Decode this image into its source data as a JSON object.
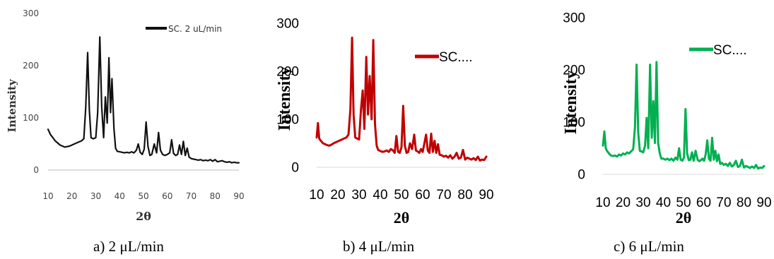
{
  "chart_data": [
    {
      "type": "line",
      "panel_label": "a)",
      "caption": "a) 2 μL/min",
      "xlabel": "2θ",
      "ylabel": "Intensity",
      "xlim": [
        10,
        90
      ],
      "ylim": [
        0,
        300
      ],
      "x_ticks": [
        10,
        20,
        30,
        40,
        50,
        60,
        70,
        80,
        90
      ],
      "x_tick_labels": [
        "10",
        "20",
        "30",
        "40",
        "50",
        "60",
        "70",
        "80",
        "90"
      ],
      "y_ticks": [
        0,
        100,
        200,
        300
      ],
      "y_tick_labels": [
        "0",
        "100",
        "200",
        "300"
      ],
      "legend": "top-right",
      "grid": false,
      "series": [
        {
          "name": "SC. 2 uL/min",
          "color": "#111111",
          "x": [
            10,
            11,
            12,
            13,
            14,
            15,
            16,
            17,
            18,
            19,
            20,
            21,
            22,
            23,
            24,
            25,
            25.8,
            26.6,
            27.3,
            28,
            29,
            30,
            30.8,
            31.7,
            32.5,
            33.3,
            34,
            34.8,
            35.5,
            36.2,
            36.8,
            37.6,
            38.3,
            39,
            40,
            41,
            42,
            43,
            44,
            45,
            46,
            47,
            47.8,
            48.6,
            49.5,
            50.3,
            51.1,
            51.9,
            52.7,
            53.5,
            54.5,
            55.5,
            56.3,
            57.1,
            58,
            59,
            60,
            61,
            61.8,
            62.6,
            63.5,
            64.3,
            65.1,
            65.9,
            66.7,
            67.5,
            68.3,
            69.1,
            70,
            71,
            72,
            73,
            74,
            75,
            76,
            77,
            78,
            79,
            80,
            81,
            82,
            83,
            84,
            85,
            86,
            87,
            88,
            89,
            90
          ],
          "y": [
            78,
            68,
            62,
            56,
            52,
            48,
            46,
            44,
            45,
            46,
            48,
            50,
            52,
            54,
            56,
            60,
            120,
            225,
            115,
            62,
            60,
            62,
            110,
            255,
            120,
            62,
            140,
            90,
            215,
            110,
            175,
            80,
            42,
            36,
            35,
            34,
            33,
            34,
            33,
            35,
            33,
            38,
            50,
            34,
            30,
            40,
            92,
            45,
            28,
            30,
            50,
            33,
            72,
            38,
            30,
            28,
            30,
            33,
            58,
            32,
            28,
            30,
            48,
            30,
            55,
            28,
            42,
            25,
            22,
            21,
            20,
            19,
            20,
            18,
            19,
            18,
            20,
            17,
            20,
            16,
            17,
            18,
            16,
            15,
            16,
            14,
            15,
            14,
            14
          ]
        }
      ]
    },
    {
      "type": "line",
      "panel_label": "b)",
      "caption": "b) 4 μL/min",
      "xlabel": "2θ",
      "ylabel": "Intensity",
      "xlim": [
        10,
        90
      ],
      "ylim": [
        0,
        300
      ],
      "x_ticks": [
        10,
        20,
        30,
        40,
        50,
        60,
        70,
        80,
        90
      ],
      "x_tick_labels": [
        "10",
        "20",
        "30",
        "40",
        "50",
        "60",
        "70",
        "80",
        "90"
      ],
      "y_ticks": [
        0,
        100,
        200,
        300
      ],
      "y_tick_labels": [
        "0",
        "100",
        "200",
        "300"
      ],
      "legend": "top-right",
      "grid": false,
      "series": [
        {
          "name": "SC....",
          "color": "#c00000",
          "x": [
            10,
            10.6,
            11.2,
            12,
            13,
            14,
            15,
            16,
            17,
            18,
            19,
            20,
            21,
            22,
            23,
            24,
            25,
            25.9,
            26.7,
            27.4,
            28.2,
            29,
            30,
            30.9,
            31.7,
            32.5,
            33.4,
            34.2,
            35,
            35.9,
            36.7,
            37.5,
            38.3,
            39,
            40,
            41,
            42,
            43,
            44,
            45,
            46,
            46.8,
            47.6,
            48.4,
            49.2,
            50,
            50.8,
            51.6,
            52.4,
            53.2,
            54,
            55,
            56,
            56.8,
            57.6,
            58.4,
            59.2,
            60,
            60.8,
            61.6,
            62.4,
            63.2,
            64,
            64.8,
            65.6,
            66.4,
            67.2,
            68,
            69,
            70,
            71,
            72,
            73,
            74,
            75,
            76,
            77,
            78,
            79,
            80,
            81,
            82,
            83,
            84,
            85,
            86,
            87,
            88,
            89,
            90
          ],
          "y": [
            62,
            92,
            60,
            55,
            50,
            48,
            46,
            45,
            47,
            50,
            52,
            54,
            56,
            58,
            60,
            62,
            68,
            120,
            270,
            110,
            62,
            60,
            58,
            120,
            160,
            80,
            230,
            110,
            190,
            100,
            265,
            90,
            45,
            36,
            34,
            32,
            33,
            35,
            32,
            38,
            35,
            30,
            65,
            32,
            30,
            42,
            128,
            45,
            30,
            32,
            50,
            38,
            68,
            35,
            33,
            30,
            38,
            32,
            50,
            68,
            35,
            30,
            70,
            32,
            55,
            30,
            48,
            26,
            25,
            22,
            24,
            20,
            25,
            18,
            22,
            30,
            18,
            20,
            36,
            16,
            20,
            18,
            16,
            19,
            15,
            22,
            14,
            16,
            15,
            22
          ]
        }
      ]
    },
    {
      "type": "line",
      "panel_label": "c)",
      "caption": "c) 6 μL/min",
      "xlabel": "2θ",
      "ylabel": "Intensity",
      "xlim": [
        10,
        90
      ],
      "ylim": [
        0,
        300
      ],
      "x_ticks": [
        10,
        20,
        30,
        40,
        50,
        60,
        70,
        80,
        90
      ],
      "x_tick_labels": [
        "10",
        "20",
        "30",
        "40",
        "50",
        "60",
        "70",
        "80",
        "90"
      ],
      "y_ticks": [
        0,
        100,
        200,
        300
      ],
      "y_tick_labels": [
        "0",
        "100",
        "200",
        "300"
      ],
      "legend": "top-right",
      "grid": false,
      "series": [
        {
          "name": "SC....",
          "color": "#00b050",
          "x": [
            10,
            10.7,
            11.4,
            12,
            13,
            14,
            15,
            16,
            17,
            18,
            19,
            20,
            21,
            22,
            23,
            24,
            25,
            25.9,
            26.7,
            27.5,
            28.3,
            29.1,
            30,
            30.9,
            31.7,
            32.5,
            33.4,
            34.2,
            35,
            35.8,
            36.6,
            37.4,
            38.2,
            39,
            40,
            41,
            42,
            43,
            44,
            45,
            46,
            47,
            47.8,
            48.6,
            49.4,
            50.2,
            51,
            51.8,
            52.6,
            53.4,
            54.2,
            55,
            56,
            57,
            57.8,
            58.6,
            59.4,
            60.2,
            61,
            61.8,
            62.6,
            63.4,
            64.2,
            65,
            65.8,
            66.6,
            67.4,
            68.2,
            69,
            70,
            71,
            72,
            73,
            74,
            75,
            76,
            77,
            78,
            79,
            80,
            81,
            82,
            83,
            84,
            85,
            86,
            87,
            88,
            89,
            90
          ],
          "y": [
            55,
            82,
            50,
            45,
            40,
            36,
            35,
            36,
            34,
            38,
            36,
            40,
            38,
            42,
            40,
            44,
            48,
            90,
            210,
            80,
            45,
            44,
            42,
            55,
            108,
            50,
            210,
            70,
            140,
            60,
            215,
            60,
            40,
            30,
            30,
            28,
            30,
            27,
            30,
            26,
            32,
            28,
            50,
            28,
            26,
            32,
            125,
            40,
            27,
            28,
            42,
            26,
            45,
            28,
            25,
            27,
            30,
            26,
            38,
            65,
            30,
            26,
            70,
            28,
            45,
            25,
            38,
            20,
            22,
            18,
            20,
            16,
            22,
            15,
            18,
            26,
            14,
            16,
            28,
            13,
            16,
            14,
            12,
            15,
            12,
            18,
            11,
            13,
            12,
            16
          ]
        }
      ]
    }
  ]
}
